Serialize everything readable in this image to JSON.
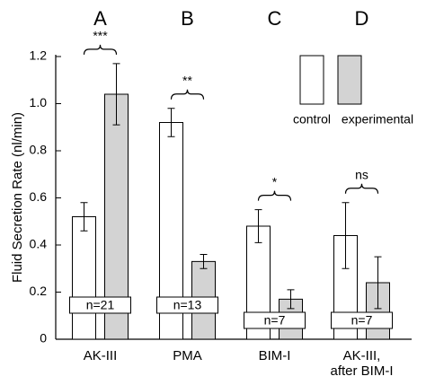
{
  "chart_data": {
    "type": "bar",
    "ylabel": "Fluid Secretion Rate (nl/min)",
    "categories": [
      "AK-III",
      "PMA",
      "BIM-I",
      "AK-III,\nafter BIM-I"
    ],
    "group_labels": [
      "A",
      "B",
      "C",
      "D"
    ],
    "significance": [
      "***",
      "**",
      "*",
      "ns"
    ],
    "sample_sizes": [
      "n=21",
      "n=13",
      "n=7",
      "n=7"
    ],
    "series": [
      {
        "name": "control",
        "color": "#ffffff",
        "values": [
          0.52,
          0.92,
          0.48,
          0.44
        ],
        "errors": [
          0.06,
          0.06,
          0.07,
          0.14
        ]
      },
      {
        "name": "experimental",
        "color": "#d3d3d3",
        "values": [
          1.04,
          0.33,
          0.17,
          0.24
        ],
        "errors": [
          0.13,
          0.03,
          0.04,
          0.11
        ]
      }
    ],
    "ylim": [
      0,
      1.2
    ],
    "yticks": [
      0,
      0.2,
      0.4,
      0.6,
      0.8,
      {
        "value": 1,
        "label": "1.0"
      },
      1.2
    ]
  }
}
